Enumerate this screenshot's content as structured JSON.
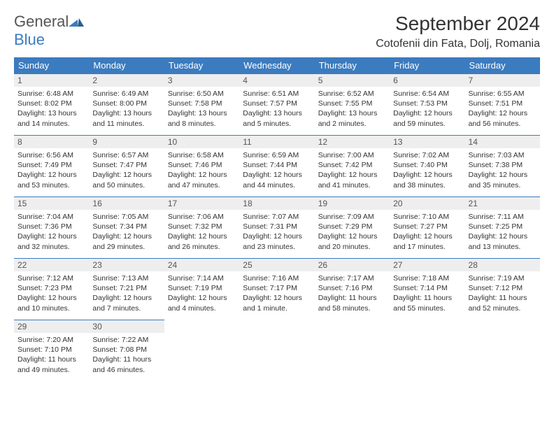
{
  "brand": {
    "part1": "General",
    "part2": "Blue"
  },
  "title": "September 2024",
  "location": "Cotofenii din Fata, Dolj, Romania",
  "colors": {
    "header_bg": "#3b7bbf",
    "header_fg": "#ffffff",
    "daynum_bg": "#eeeeee",
    "rule": "#3b7bbf"
  },
  "weekdays": [
    "Sunday",
    "Monday",
    "Tuesday",
    "Wednesday",
    "Thursday",
    "Friday",
    "Saturday"
  ],
  "weeks": [
    [
      {
        "n": "1",
        "sr": "Sunrise: 6:48 AM",
        "ss": "Sunset: 8:02 PM",
        "dl": "Daylight: 13 hours and 14 minutes."
      },
      {
        "n": "2",
        "sr": "Sunrise: 6:49 AM",
        "ss": "Sunset: 8:00 PM",
        "dl": "Daylight: 13 hours and 11 minutes."
      },
      {
        "n": "3",
        "sr": "Sunrise: 6:50 AM",
        "ss": "Sunset: 7:58 PM",
        "dl": "Daylight: 13 hours and 8 minutes."
      },
      {
        "n": "4",
        "sr": "Sunrise: 6:51 AM",
        "ss": "Sunset: 7:57 PM",
        "dl": "Daylight: 13 hours and 5 minutes."
      },
      {
        "n": "5",
        "sr": "Sunrise: 6:52 AM",
        "ss": "Sunset: 7:55 PM",
        "dl": "Daylight: 13 hours and 2 minutes."
      },
      {
        "n": "6",
        "sr": "Sunrise: 6:54 AM",
        "ss": "Sunset: 7:53 PM",
        "dl": "Daylight: 12 hours and 59 minutes."
      },
      {
        "n": "7",
        "sr": "Sunrise: 6:55 AM",
        "ss": "Sunset: 7:51 PM",
        "dl": "Daylight: 12 hours and 56 minutes."
      }
    ],
    [
      {
        "n": "8",
        "sr": "Sunrise: 6:56 AM",
        "ss": "Sunset: 7:49 PM",
        "dl": "Daylight: 12 hours and 53 minutes."
      },
      {
        "n": "9",
        "sr": "Sunrise: 6:57 AM",
        "ss": "Sunset: 7:47 PM",
        "dl": "Daylight: 12 hours and 50 minutes."
      },
      {
        "n": "10",
        "sr": "Sunrise: 6:58 AM",
        "ss": "Sunset: 7:46 PM",
        "dl": "Daylight: 12 hours and 47 minutes."
      },
      {
        "n": "11",
        "sr": "Sunrise: 6:59 AM",
        "ss": "Sunset: 7:44 PM",
        "dl": "Daylight: 12 hours and 44 minutes."
      },
      {
        "n": "12",
        "sr": "Sunrise: 7:00 AM",
        "ss": "Sunset: 7:42 PM",
        "dl": "Daylight: 12 hours and 41 minutes."
      },
      {
        "n": "13",
        "sr": "Sunrise: 7:02 AM",
        "ss": "Sunset: 7:40 PM",
        "dl": "Daylight: 12 hours and 38 minutes."
      },
      {
        "n": "14",
        "sr": "Sunrise: 7:03 AM",
        "ss": "Sunset: 7:38 PM",
        "dl": "Daylight: 12 hours and 35 minutes."
      }
    ],
    [
      {
        "n": "15",
        "sr": "Sunrise: 7:04 AM",
        "ss": "Sunset: 7:36 PM",
        "dl": "Daylight: 12 hours and 32 minutes."
      },
      {
        "n": "16",
        "sr": "Sunrise: 7:05 AM",
        "ss": "Sunset: 7:34 PM",
        "dl": "Daylight: 12 hours and 29 minutes."
      },
      {
        "n": "17",
        "sr": "Sunrise: 7:06 AM",
        "ss": "Sunset: 7:32 PM",
        "dl": "Daylight: 12 hours and 26 minutes."
      },
      {
        "n": "18",
        "sr": "Sunrise: 7:07 AM",
        "ss": "Sunset: 7:31 PM",
        "dl": "Daylight: 12 hours and 23 minutes."
      },
      {
        "n": "19",
        "sr": "Sunrise: 7:09 AM",
        "ss": "Sunset: 7:29 PM",
        "dl": "Daylight: 12 hours and 20 minutes."
      },
      {
        "n": "20",
        "sr": "Sunrise: 7:10 AM",
        "ss": "Sunset: 7:27 PM",
        "dl": "Daylight: 12 hours and 17 minutes."
      },
      {
        "n": "21",
        "sr": "Sunrise: 7:11 AM",
        "ss": "Sunset: 7:25 PM",
        "dl": "Daylight: 12 hours and 13 minutes."
      }
    ],
    [
      {
        "n": "22",
        "sr": "Sunrise: 7:12 AM",
        "ss": "Sunset: 7:23 PM",
        "dl": "Daylight: 12 hours and 10 minutes."
      },
      {
        "n": "23",
        "sr": "Sunrise: 7:13 AM",
        "ss": "Sunset: 7:21 PM",
        "dl": "Daylight: 12 hours and 7 minutes."
      },
      {
        "n": "24",
        "sr": "Sunrise: 7:14 AM",
        "ss": "Sunset: 7:19 PM",
        "dl": "Daylight: 12 hours and 4 minutes."
      },
      {
        "n": "25",
        "sr": "Sunrise: 7:16 AM",
        "ss": "Sunset: 7:17 PM",
        "dl": "Daylight: 12 hours and 1 minute."
      },
      {
        "n": "26",
        "sr": "Sunrise: 7:17 AM",
        "ss": "Sunset: 7:16 PM",
        "dl": "Daylight: 11 hours and 58 minutes."
      },
      {
        "n": "27",
        "sr": "Sunrise: 7:18 AM",
        "ss": "Sunset: 7:14 PM",
        "dl": "Daylight: 11 hours and 55 minutes."
      },
      {
        "n": "28",
        "sr": "Sunrise: 7:19 AM",
        "ss": "Sunset: 7:12 PM",
        "dl": "Daylight: 11 hours and 52 minutes."
      }
    ],
    [
      {
        "n": "29",
        "sr": "Sunrise: 7:20 AM",
        "ss": "Sunset: 7:10 PM",
        "dl": "Daylight: 11 hours and 49 minutes."
      },
      {
        "n": "30",
        "sr": "Sunrise: 7:22 AM",
        "ss": "Sunset: 7:08 PM",
        "dl": "Daylight: 11 hours and 46 minutes."
      },
      null,
      null,
      null,
      null,
      null
    ]
  ]
}
